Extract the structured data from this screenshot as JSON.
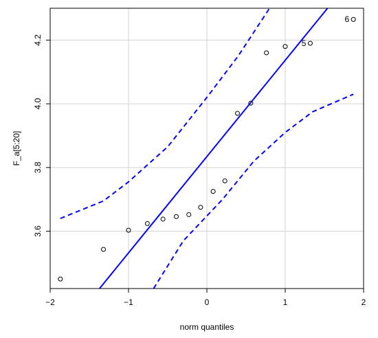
{
  "chart_data": {
    "type": "scatter",
    "title": "",
    "xlabel": "norm quantiles",
    "ylabel": "F_a[5:20]",
    "xlim": [
      -2,
      2
    ],
    "ylim": [
      3.42,
      4.3
    ],
    "x_ticks": [
      -2,
      -1,
      0,
      1,
      2
    ],
    "y_ticks": [
      3.6,
      3.8,
      4.0,
      4.2
    ],
    "x_tick_labels": [
      "−2",
      "−1",
      "0",
      "1",
      "2"
    ],
    "y_tick_labels": [
      "3.6",
      "3.8",
      "4.0",
      "4.2"
    ],
    "grid": true,
    "legend": "none",
    "colors": {
      "line": "#0000ff",
      "points": "#000000",
      "grid": "#d3d3d3",
      "frame": "#000000"
    },
    "points": [
      {
        "x": -1.87,
        "y": 3.45
      },
      {
        "x": -1.32,
        "y": 3.543
      },
      {
        "x": -1.0,
        "y": 3.603
      },
      {
        "x": -0.76,
        "y": 3.624
      },
      {
        "x": -0.56,
        "y": 3.638
      },
      {
        "x": -0.39,
        "y": 3.646
      },
      {
        "x": -0.23,
        "y": 3.652
      },
      {
        "x": -0.08,
        "y": 3.675
      },
      {
        "x": 0.08,
        "y": 3.725
      },
      {
        "x": 0.23,
        "y": 3.758
      },
      {
        "x": 0.39,
        "y": 3.97
      },
      {
        "x": 0.56,
        "y": 4.002
      },
      {
        "x": 0.76,
        "y": 4.16
      },
      {
        "x": 1.0,
        "y": 4.18
      },
      {
        "x": 1.32,
        "y": 4.19
      },
      {
        "x": 1.87,
        "y": 4.265
      }
    ],
    "point_labels": [
      {
        "index": 14,
        "text": "5"
      },
      {
        "index": 15,
        "text": "6"
      }
    ],
    "reference_line": {
      "x0": -1.37,
      "y0": 3.42,
      "x1": 1.54,
      "y1": 4.3
    },
    "confidence_upper": [
      {
        "x": -1.87,
        "y": 3.64
      },
      {
        "x": -1.32,
        "y": 3.695
      },
      {
        "x": -1.0,
        "y": 3.755
      },
      {
        "x": -0.5,
        "y": 3.865
      },
      {
        "x": 0.0,
        "y": 4.02
      },
      {
        "x": 0.4,
        "y": 4.15
      },
      {
        "x": 0.8,
        "y": 4.3
      }
    ],
    "confidence_lower": [
      {
        "x": -0.68,
        "y": 3.42
      },
      {
        "x": -0.3,
        "y": 3.57
      },
      {
        "x": 0.2,
        "y": 3.7
      },
      {
        "x": 0.6,
        "y": 3.82
      },
      {
        "x": 1.0,
        "y": 3.91
      },
      {
        "x": 1.35,
        "y": 3.975
      },
      {
        "x": 1.87,
        "y": 4.03
      }
    ]
  }
}
